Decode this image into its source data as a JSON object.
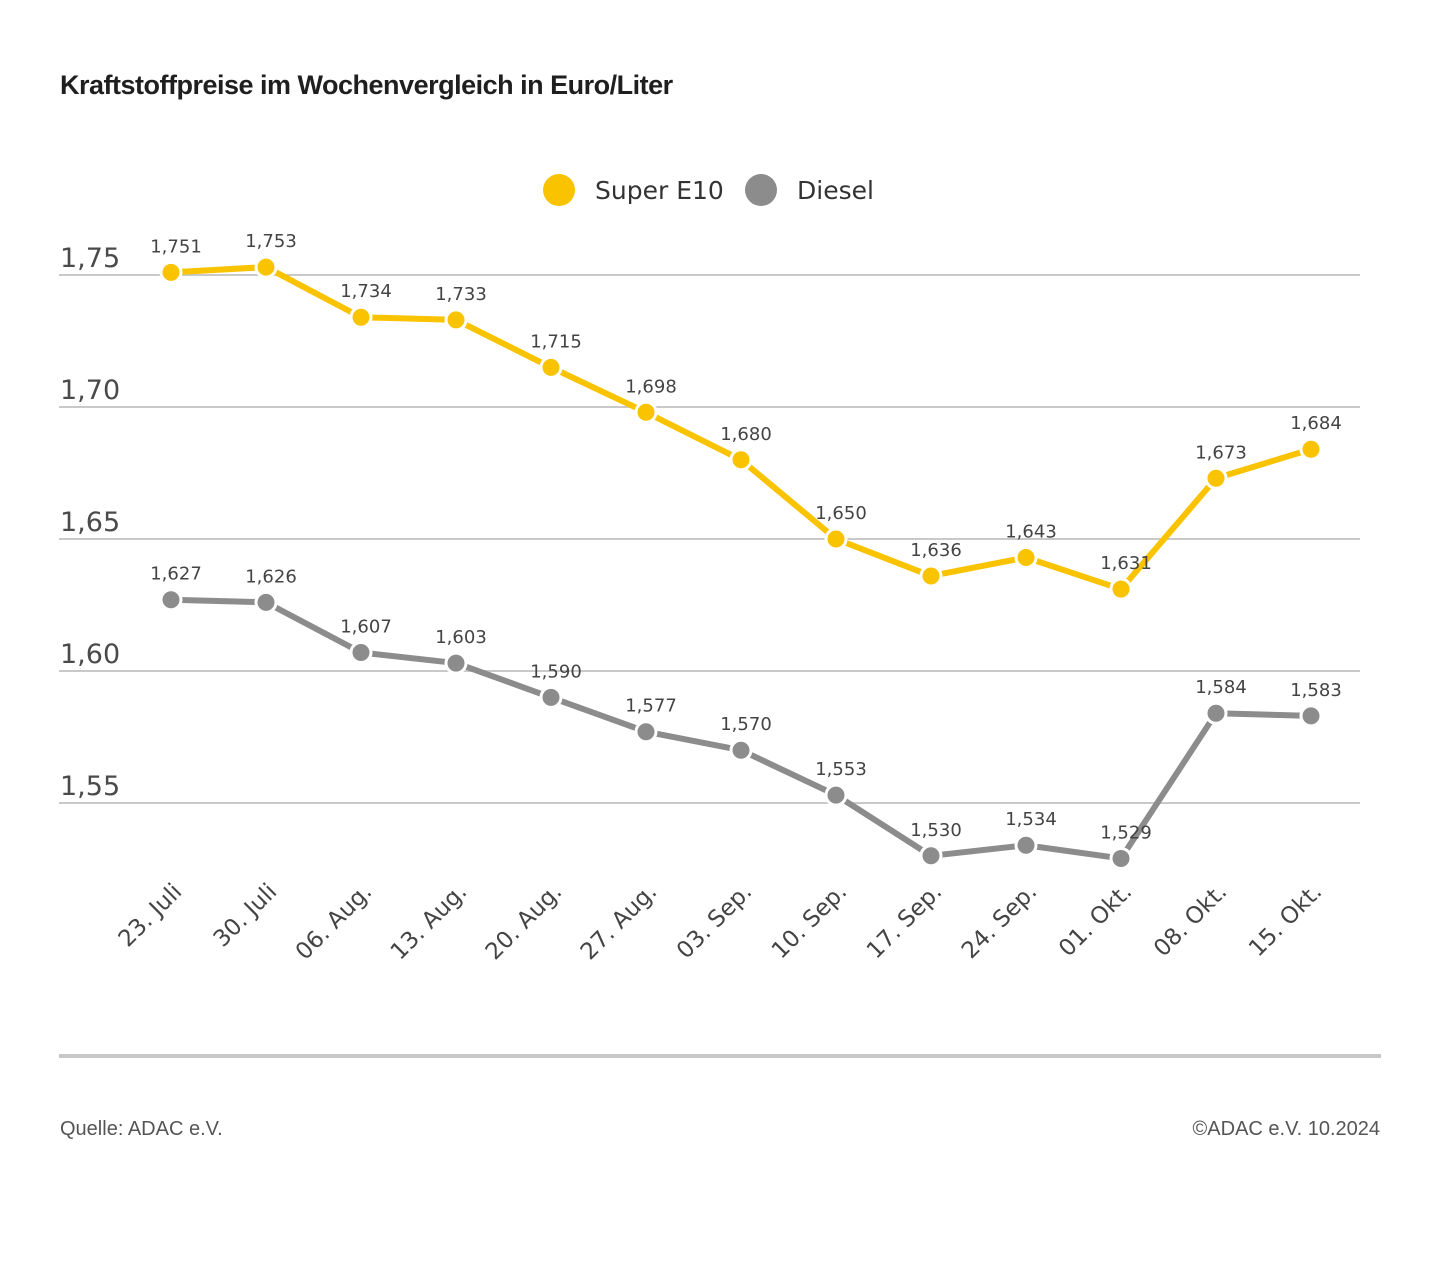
{
  "title": "Kraftstoffpreise im Wochenvergleich in Euro/Liter",
  "footer": {
    "source": "Quelle: ADAC e.V.",
    "copyright": "©ADAC e.V. 10.2024"
  },
  "chart_data": {
    "type": "line",
    "title": "Kraftstoffpreise im Wochenvergleich in Euro/Liter",
    "xlabel": "",
    "ylabel": "Euro/Liter",
    "ylim": [
      1.55,
      1.75
    ],
    "yticks": [
      1.75,
      1.7,
      1.65,
      1.6,
      1.55
    ],
    "ytick_labels": [
      "1,75",
      "1,70",
      "1,65",
      "1,60",
      "1,55"
    ],
    "grid": true,
    "legend": "top-center",
    "categories": [
      "23. Juli",
      "30. Juli",
      "06. Aug.",
      "13. Aug.",
      "20. Aug.",
      "27. Aug.",
      "03. Sep.",
      "10. Sep.",
      "17. Sep.",
      "24. Sep.",
      "01. Okt.",
      "08. Okt.",
      "15. Okt."
    ],
    "series": [
      {
        "name": "Super E10",
        "color": "#f9c300",
        "values": [
          1.751,
          1.753,
          1.734,
          1.733,
          1.715,
          1.698,
          1.68,
          1.65,
          1.636,
          1.643,
          1.631,
          1.673,
          1.684
        ],
        "labels": [
          "1,751",
          "1,753",
          "1,734",
          "1,733",
          "1,715",
          "1,698",
          "1,680",
          "1,650",
          "1,636",
          "1,643",
          "1,631",
          "1,673",
          "1,684"
        ]
      },
      {
        "name": "Diesel",
        "color": "#8c8c8c",
        "values": [
          1.627,
          1.626,
          1.607,
          1.603,
          1.59,
          1.577,
          1.57,
          1.553,
          1.53,
          1.534,
          1.529,
          1.584,
          1.583
        ],
        "labels": [
          "1,627",
          "1,626",
          "1,607",
          "1,603",
          "1,590",
          "1,577",
          "1,570",
          "1,553",
          "1,530",
          "1,534",
          "1,529",
          "1,584",
          "1,583"
        ]
      }
    ]
  }
}
